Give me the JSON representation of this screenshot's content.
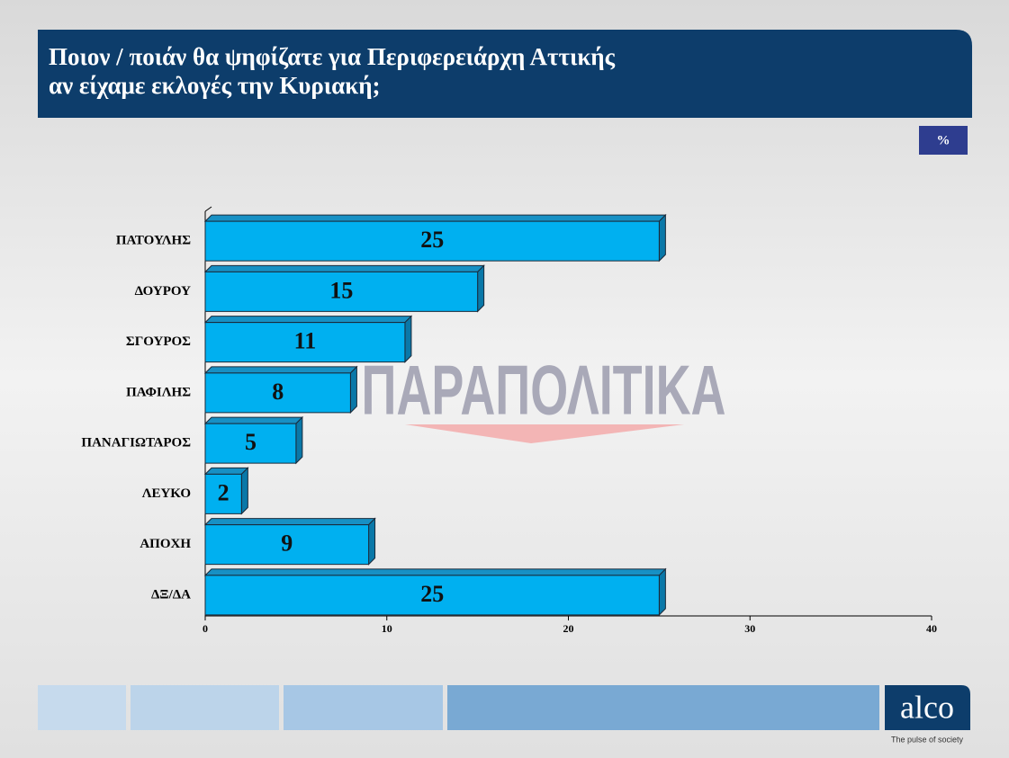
{
  "chart_data": {
    "type": "bar",
    "orientation": "horizontal",
    "title": [
      "Ποιον / ποιάν θα ψηφίζατε για Περιφερειάρχη Αττικής",
      "αν είχαμε εκλογές την Κυριακή;"
    ],
    "unit": "%",
    "categories": [
      "ΠΑΤΟΥΛΗΣ",
      "ΔΟΥΡΟΥ",
      "ΣΓΟΥΡΟΣ",
      "ΠΑΦΙΛΗΣ",
      "ΠΑΝΑΓΙΩΤΑΡΟΣ",
      "ΛΕΥΚΟ",
      "ΑΠΟΧΗ",
      "ΔΞ/ΔΑ"
    ],
    "values": [
      25,
      15,
      11,
      8,
      5,
      2,
      9,
      25
    ],
    "color": "#00b0f0",
    "xlim": [
      0,
      40
    ],
    "xticks": [
      0,
      10,
      20,
      30,
      40
    ]
  },
  "watermark": "ΠΑΡΑΠΟΛΙΤΙΚΑ",
  "logo": {
    "name": "alco",
    "tagline": "The pulse of society"
  }
}
